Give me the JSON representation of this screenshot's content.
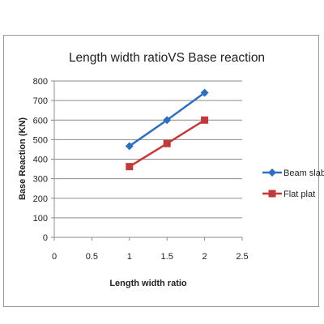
{
  "chart_data": {
    "type": "line",
    "title": "Length width ratioVS Base reaction",
    "xlabel": "Length width ratio",
    "ylabel": "Base Reaction (KN)",
    "xlim": [
      0,
      2.5
    ],
    "ylim": [
      0,
      800
    ],
    "x_ticks": [
      "0",
      "0.5",
      "1",
      "1.5",
      "2",
      "2.5"
    ],
    "y_ticks": [
      "0",
      "100",
      "200",
      "300",
      "400",
      "500",
      "600",
      "700",
      "800"
    ],
    "grid": true,
    "legend_position": "right",
    "series": [
      {
        "name": "Beam slab",
        "color": "#2e6fbf",
        "marker": "diamond",
        "x": [
          1,
          1.5,
          2
        ],
        "y": [
          467,
          600,
          740
        ]
      },
      {
        "name": "Flat plat",
        "color": "#c0393b",
        "marker": "square",
        "x": [
          1,
          1.5,
          2
        ],
        "y": [
          362,
          480,
          600
        ]
      }
    ]
  }
}
